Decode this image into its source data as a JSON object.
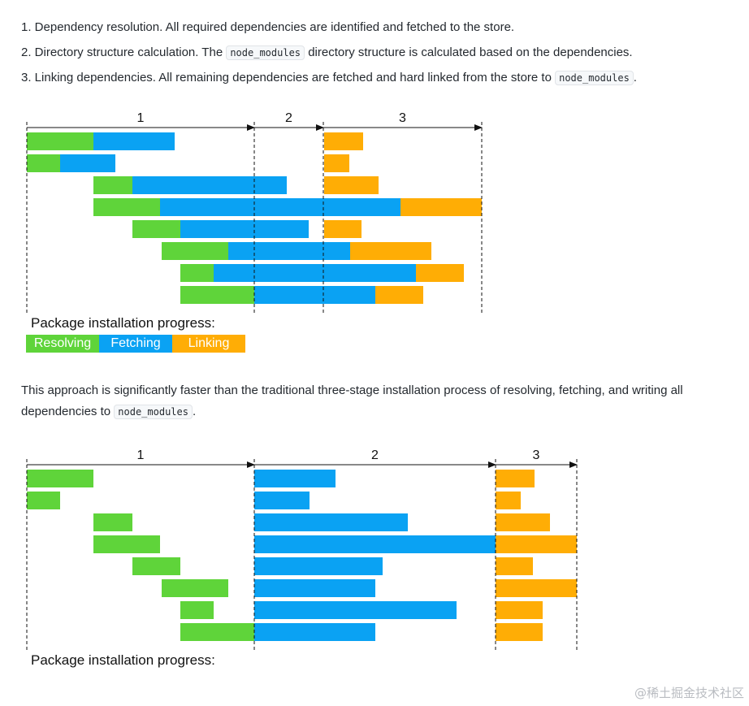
{
  "steps": [
    {
      "text": "1. Dependency resolution. All required dependencies are identified and fetched to the store."
    },
    {
      "before": "2. Directory structure calculation. The ",
      "code": "node_modules",
      "after": " directory structure is calculated based on the dependencies."
    },
    {
      "before": "3. Linking dependencies. All remaining dependencies are fetched and hard linked from the store to ",
      "code": "node_modules",
      "after": "."
    }
  ],
  "paragraph": {
    "before": "This approach is significantly faster than the traditional three-stage installation process of resolving, fetching, and writing all dependencies to ",
    "code": "node_modules",
    "after": "."
  },
  "colors": {
    "resolving": "#5fd43a",
    "fetching": "#0aa2f3",
    "linking": "#ffad05"
  },
  "legend": {
    "title": "Package installation progress:",
    "resolving": "Resolving",
    "fetching": "Fetching",
    "linking": "Linking"
  },
  "watermark": "@稀土掘金技术社区",
  "chart_data": [
    {
      "type": "gantt",
      "phase_labels": [
        "1",
        "2",
        "3"
      ],
      "phase_bounds": [
        0,
        280,
        365,
        560
      ],
      "tasks": [
        {
          "resolving": [
            0,
            82
          ],
          "fetching": [
            82,
            182
          ],
          "linking": [
            366,
            414
          ]
        },
        {
          "resolving": [
            0,
            41
          ],
          "fetching": [
            41,
            109
          ],
          "linking": [
            366,
            397
          ]
        },
        {
          "resolving": [
            82,
            130
          ],
          "fetching": [
            130,
            320
          ],
          "linking": [
            366,
            433
          ]
        },
        {
          "resolving": [
            82,
            164
          ],
          "fetching": [
            164,
            460
          ],
          "linking": [
            460,
            560
          ]
        },
        {
          "resolving": [
            130,
            189
          ],
          "fetching": [
            189,
            347
          ],
          "linking": [
            366,
            412
          ]
        },
        {
          "resolving": [
            166,
            248
          ],
          "fetching": [
            248,
            398
          ],
          "linking": [
            398,
            498
          ]
        },
        {
          "resolving": [
            189,
            230
          ],
          "fetching": [
            230,
            479
          ],
          "linking": [
            479,
            538
          ]
        },
        {
          "resolving": [
            189,
            280
          ],
          "fetching": [
            280,
            429
          ],
          "linking": [
            429,
            488
          ]
        }
      ]
    },
    {
      "type": "gantt",
      "phase_labels": [
        "1",
        "2",
        "3"
      ],
      "phase_bounds": [
        0,
        280,
        577,
        677
      ],
      "tasks": [
        {
          "resolving": [
            0,
            82
          ],
          "fetching": [
            280,
            380
          ],
          "linking": [
            577,
            625
          ]
        },
        {
          "resolving": [
            0,
            41
          ],
          "fetching": [
            280,
            348
          ],
          "linking": [
            577,
            608
          ]
        },
        {
          "resolving": [
            82,
            130
          ],
          "fetching": [
            280,
            469
          ],
          "linking": [
            577,
            644
          ]
        },
        {
          "resolving": [
            82,
            164
          ],
          "fetching": [
            280,
            577
          ],
          "linking": [
            577,
            677
          ]
        },
        {
          "resolving": [
            130,
            189
          ],
          "fetching": [
            280,
            438
          ],
          "linking": [
            577,
            623
          ]
        },
        {
          "resolving": [
            166,
            248
          ],
          "fetching": [
            280,
            429
          ],
          "linking": [
            577,
            677
          ]
        },
        {
          "resolving": [
            189,
            230
          ],
          "fetching": [
            280,
            529
          ],
          "linking": [
            577,
            635
          ]
        },
        {
          "resolving": [
            189,
            280
          ],
          "fetching": [
            280,
            429
          ],
          "linking": [
            577,
            635
          ]
        }
      ]
    }
  ]
}
